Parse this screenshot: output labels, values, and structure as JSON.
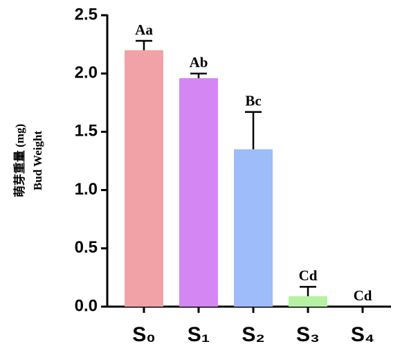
{
  "chart_data": {
    "type": "bar",
    "y_label": [
      "萌芽重量 (mg)",
      "Bud Weight"
    ],
    "categories": [
      "S₀",
      "S₁",
      "S₂",
      "S₃",
      "S₄"
    ],
    "values": [
      2.2,
      1.96,
      1.35,
      0.09,
      0
    ],
    "errors": [
      0.08,
      0.04,
      0.32,
      0.08,
      0
    ],
    "letters": [
      "Aa",
      "Ab",
      "Bc",
      "Cd",
      "Cd"
    ],
    "colors": [
      "#f0a2a6",
      "#d487f2",
      "#9dbcf9",
      "#b5f2a4",
      "#ffffff"
    ],
    "ylim": [
      0,
      2.5
    ],
    "yticks": [
      {
        "value": 0,
        "label": "0.0"
      },
      0.5,
      {
        "value": 1,
        "label": "1.0"
      },
      1.5,
      {
        "value": 2,
        "label": "2.0"
      },
      2.5
    ]
  }
}
